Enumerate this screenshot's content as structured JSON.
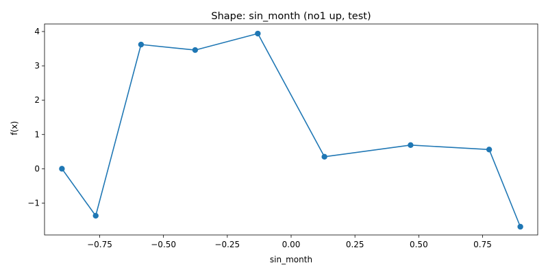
{
  "chart_data": {
    "type": "line",
    "title": "Shape: sin_month (no1 up, test)",
    "xlabel": "sin_month",
    "ylabel": "f(x)",
    "xlim": [
      -0.9659,
      0.9659
    ],
    "ylim": [
      -1.93,
      4.22
    ],
    "x_ticks": [
      -0.75,
      -0.5,
      -0.25,
      0.0,
      0.25,
      0.5,
      0.75
    ],
    "x_tick_labels": [
      "−0.75",
      "−0.50",
      "−0.25",
      "0.00",
      "0.25",
      "0.50",
      "0.75"
    ],
    "y_ticks": [
      -1,
      0,
      1,
      2,
      3,
      4
    ],
    "y_tick_labels": [
      "−1",
      "0",
      "1",
      "2",
      "3",
      "4"
    ],
    "grid": false,
    "series": [
      {
        "color": "#1f77b4",
        "marker": "circle",
        "x": [
          -0.8978,
          -0.7654,
          -0.5878,
          -0.3759,
          -0.1305,
          0.1305,
          0.4679,
          0.7757,
          0.8978
        ],
        "y": [
          0.0,
          -1.37,
          3.62,
          3.46,
          3.94,
          0.35,
          0.69,
          0.56,
          -1.69
        ]
      }
    ]
  }
}
